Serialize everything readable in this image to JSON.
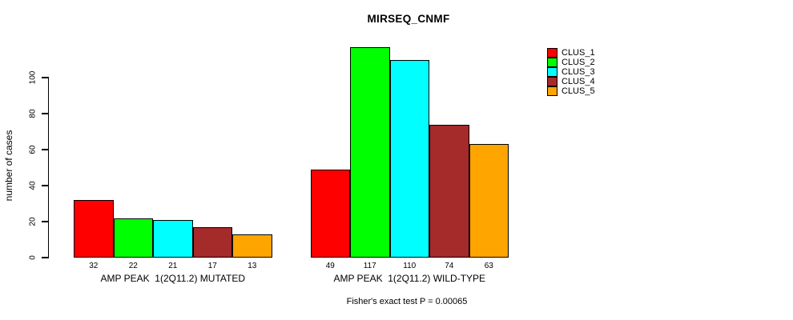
{
  "chart_data": {
    "type": "bar",
    "title": "MIRSEQ_CNMF",
    "ylabel": "number of cases",
    "xlabel": "",
    "caption": "Fisher's exact test P = 0.00065",
    "categories": [
      "AMP PEAK  1(2Q11.2) MUTATED",
      "AMP PEAK  1(2Q11.2) WILD-TYPE"
    ],
    "series": [
      {
        "name": "CLUS_1",
        "color": "#FF0000",
        "values": [
          32,
          49
        ]
      },
      {
        "name": "CLUS_2",
        "color": "#00FF00",
        "values": [
          22,
          117
        ]
      },
      {
        "name": "CLUS_3",
        "color": "#00FFFF",
        "values": [
          21,
          110
        ]
      },
      {
        "name": "CLUS_4",
        "color": "#A52A2A",
        "values": [
          17,
          74
        ]
      },
      {
        "name": "CLUS_5",
        "color": "#FFA500",
        "values": [
          13,
          63
        ]
      }
    ],
    "yticks": [
      0,
      20,
      40,
      60,
      80,
      100
    ],
    "ylim": [
      0,
      117
    ],
    "grid": false,
    "bar_value_labels": true,
    "legend_position": "right",
    "background": "#ffffff",
    "axis_color": "#000000"
  }
}
